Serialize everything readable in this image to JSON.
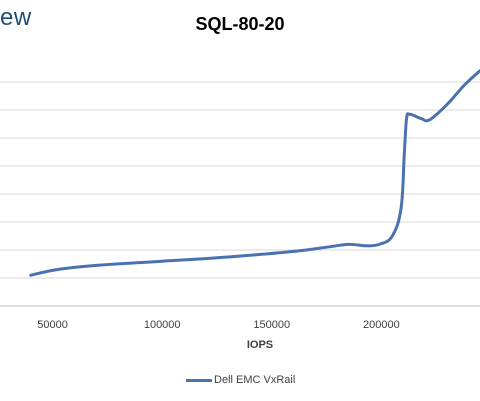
{
  "brand": {
    "text": "ew",
    "color": "#1f4e79"
  },
  "chart_data": {
    "type": "line",
    "title": "SQL-80-20",
    "xlabel": "IOPS",
    "ylabel": "",
    "xlim": [
      26000,
      245000
    ],
    "ylim": [
      0,
      9
    ],
    "x_ticks": [
      {
        "value": 50000,
        "label": "50000"
      },
      {
        "value": 100000,
        "label": "100000"
      },
      {
        "value": 150000,
        "label": "150000"
      },
      {
        "value": 200000,
        "label": "200000"
      }
    ],
    "y_gridlines": [
      0,
      1,
      2,
      3,
      4,
      5,
      6,
      7,
      8
    ],
    "grid": true,
    "legend_position": "bottom",
    "series": [
      {
        "name": "Dell EMC VxRail",
        "color": "#4a72b0",
        "x": [
          40000,
          52000,
          70000,
          100000,
          130000,
          160000,
          175000,
          185000,
          193000,
          199000,
          205000,
          209000,
          210500,
          211500,
          213000,
          218000,
          222000,
          230000,
          238000,
          245000
        ],
        "y": [
          1.1,
          1.3,
          1.45,
          1.6,
          1.75,
          1.95,
          2.1,
          2.2,
          2.15,
          2.2,
          2.5,
          3.5,
          5.5,
          6.7,
          6.85,
          6.7,
          6.65,
          7.2,
          7.9,
          8.4
        ]
      }
    ]
  }
}
